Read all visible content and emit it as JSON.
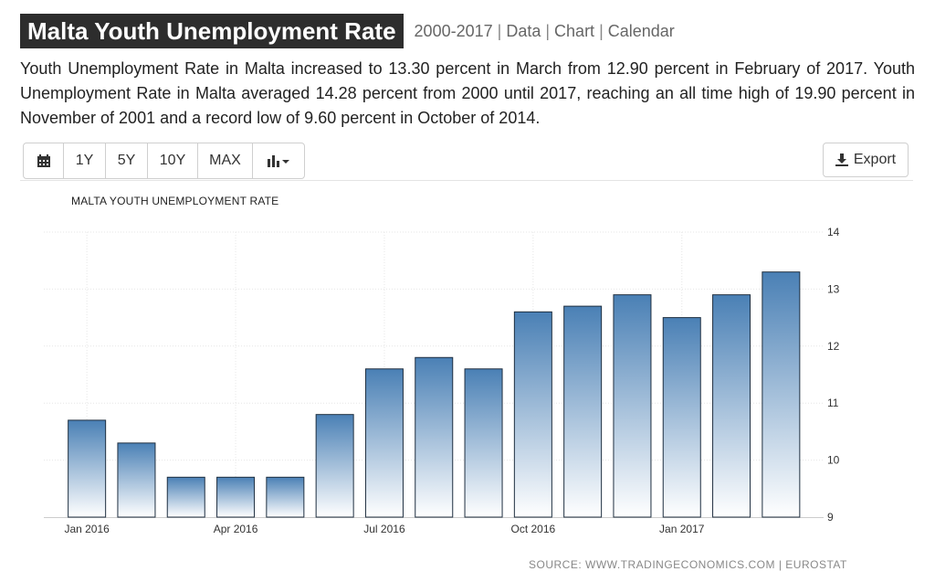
{
  "header": {
    "title": "Malta Youth Unemployment Rate",
    "links": [
      "2000-2017",
      "Data",
      "Chart",
      "Calendar"
    ],
    "separator": "|"
  },
  "description": "Youth Unemployment Rate in Malta increased to 13.30 percent in March from 12.90 percent in February of 2017. Youth Unemployment Rate in Malta averaged 14.28 percent from 2000 until 2017, reaching an all time high of 19.90 percent in November of 2001 and a record low of 9.60 percent in October of 2014.",
  "toolbar": {
    "calendar_icon": "calendar-icon",
    "ranges": [
      "1Y",
      "5Y",
      "10Y",
      "MAX"
    ],
    "chart_type_icon": "bar-chart-icon",
    "export_label": "Export",
    "export_icon": "download-icon"
  },
  "chart_data": {
    "type": "bar",
    "title": "MALTA YOUTH UNEMPLOYMENT RATE",
    "categories": [
      "Jan 2016",
      "Feb 2016",
      "Mar 2016",
      "Apr 2016",
      "May 2016",
      "Jun 2016",
      "Jul 2016",
      "Aug 2016",
      "Sep 2016",
      "Oct 2016",
      "Nov 2016",
      "Dec 2016",
      "Jan 2017",
      "Feb 2017",
      "Mar 2017"
    ],
    "values": [
      10.7,
      10.3,
      9.7,
      9.7,
      9.7,
      10.8,
      11.6,
      11.8,
      11.6,
      12.6,
      12.7,
      12.9,
      12.5,
      12.9,
      13.3
    ],
    "x_tick_labels": [
      "Jan 2016",
      "Apr 2016",
      "Jul 2016",
      "Oct 2016",
      "Jan 2017"
    ],
    "y_ticks": [
      9,
      10,
      11,
      12,
      13,
      14
    ],
    "ylim": [
      9,
      14
    ],
    "y_axis_side": "right",
    "grid": true,
    "bar_color_top": "#4a80b5",
    "bar_color_bottom": "#ffffff"
  },
  "source": "SOURCE: WWW.TRADINGECONOMICS.COM | EUROSTAT"
}
